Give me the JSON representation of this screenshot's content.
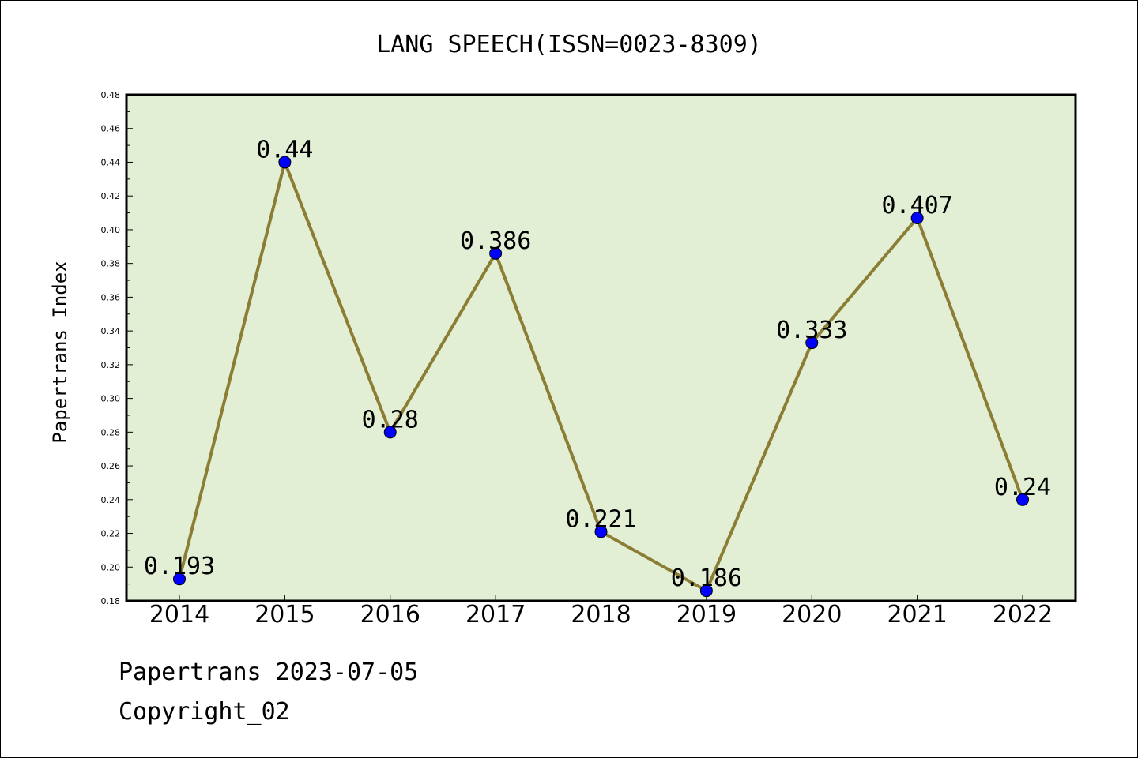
{
  "chart_data": {
    "type": "line",
    "title": "LANG SPEECH(ISSN=0023-8309)",
    "xlabel": "",
    "ylabel": "Papertrans Index",
    "categories": [
      "2014",
      "2015",
      "2016",
      "2017",
      "2018",
      "2019",
      "2020",
      "2021",
      "2022"
    ],
    "series": [
      {
        "values": [
          0.193,
          0.44,
          0.28,
          0.386,
          0.221,
          0.186,
          0.333,
          0.407,
          0.24
        ],
        "labels": [
          "0.193",
          "0.44",
          "0.28",
          "0.386",
          "0.221",
          "0.186",
          "0.333",
          "0.407",
          "0.24"
        ],
        "line_color": "#8b7d34",
        "marker_color": "#0000ff"
      }
    ],
    "ylim": [
      0.18,
      0.48
    ],
    "yticks": [
      "0.18",
      "0.20",
      "0.22",
      "0.24",
      "0.26",
      "0.28",
      "0.30",
      "0.32",
      "0.34",
      "0.36",
      "0.38",
      "0.40",
      "0.42",
      "0.44",
      "0.46",
      "0.48"
    ],
    "plot_background": "#e2efd5",
    "grid": false,
    "legend": "none"
  },
  "footer": {
    "line1": "Papertrans 2023-07-05",
    "line2": "Copyright_02"
  }
}
